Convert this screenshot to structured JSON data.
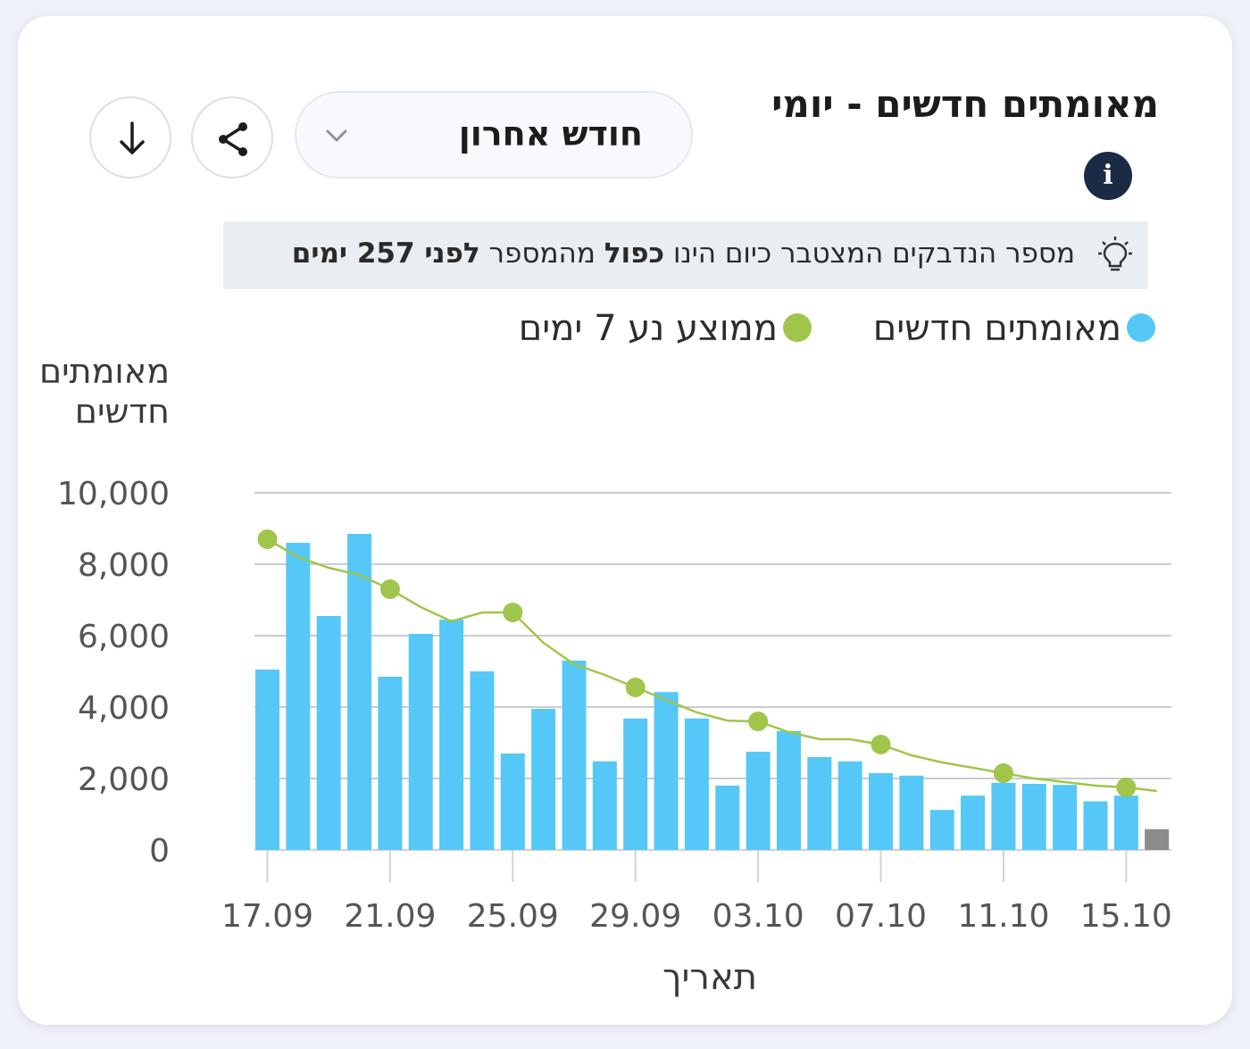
{
  "header": {
    "title": "מאומתים חדשים - יומי",
    "info_icon": "info-icon",
    "range_selector": "חודש אחרון",
    "share_icon": "share-icon",
    "download_icon": "download-icon"
  },
  "insight": {
    "icon": "lightbulb-icon",
    "text_plain_1": "מספר הנדבקים המצטבר כיום הינו",
    "text_bold_1": "כפול",
    "text_plain_2": "מהמספר",
    "text_bold_2": "לפני 257 ימים"
  },
  "colors": {
    "bars": "#55c8f7",
    "today_bar": "#8b8b8b",
    "average_line": "#9fc64a",
    "grid": "#c9ccd3",
    "accent_dark": "#1b2a45"
  },
  "chart_data": {
    "type": "bar",
    "ylabel": "מאומתים חדשים",
    "xlabel": "תאריך",
    "ylim": [
      0,
      10000
    ],
    "yticks": [
      "0",
      "2,000",
      "4,000",
      "6,000",
      "8,000",
      "10,000"
    ],
    "xtick_labels": [
      "17.09",
      "21.09",
      "25.09",
      "29.09",
      "03.10",
      "07.10",
      "11.10",
      "15.10"
    ],
    "categories": [
      "17.09",
      "18.09",
      "19.09",
      "20.09",
      "21.09",
      "22.09",
      "23.09",
      "24.09",
      "25.09",
      "26.09",
      "27.09",
      "28.09",
      "29.09",
      "30.09",
      "01.10",
      "02.10",
      "03.10",
      "04.10",
      "05.10",
      "06.10",
      "07.10",
      "08.10",
      "09.10",
      "10.10",
      "11.10",
      "12.10",
      "13.10",
      "14.10",
      "15.10",
      "16.10"
    ],
    "series": [
      {
        "name": "מאומתים חדשים",
        "values": [
          5050,
          8600,
          6550,
          8850,
          4850,
          6050,
          6450,
          5000,
          2700,
          3950,
          5300,
          2480,
          3680,
          4420,
          3680,
          1800,
          2750,
          3330,
          2600,
          2480,
          2150,
          2080,
          1120,
          1520,
          1880,
          1850,
          1820,
          1360,
          1520,
          580
        ]
      },
      {
        "name": "ממוצע נע 7 ימים",
        "values": [
          8700,
          8200,
          7900,
          7700,
          7300,
          6800,
          6400,
          6650,
          6650,
          5800,
          5200,
          4900,
          4550,
          4200,
          3850,
          3620,
          3600,
          3300,
          3100,
          3100,
          2950,
          2650,
          2450,
          2300,
          2150,
          2000,
          1900,
          1800,
          1750,
          1650
        ]
      }
    ],
    "today_bar_index": 29
  }
}
